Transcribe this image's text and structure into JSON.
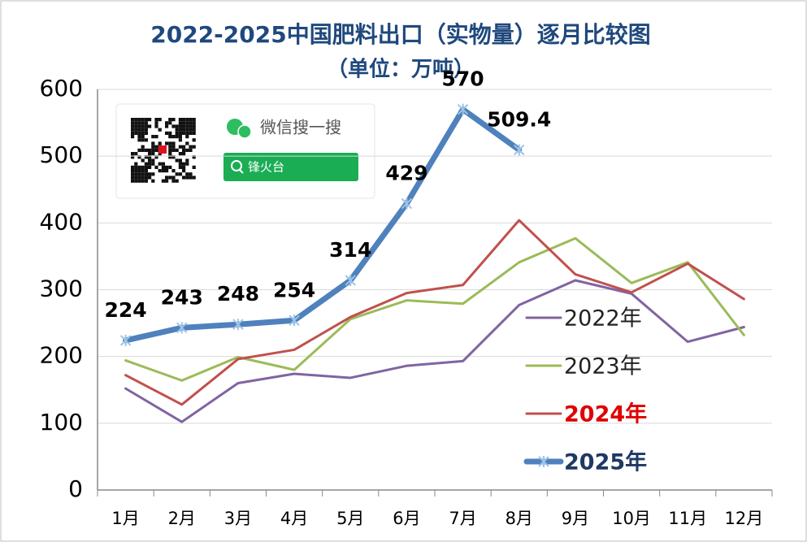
{
  "chart_data": {
    "type": "line",
    "title": "2022-2025中国肥料出口（实物量）逐月比较图",
    "subtitle": "（单位：万吨）",
    "categories": [
      "1月",
      "2月",
      "3月",
      "4月",
      "5月",
      "6月",
      "7月",
      "8月",
      "9月",
      "10月",
      "11月",
      "12月"
    ],
    "series": [
      {
        "name": "2022年",
        "color": "#8064a2",
        "values": [
          152,
          102,
          160,
          174,
          168,
          186,
          193,
          277,
          314,
          294,
          222,
          244
        ]
      },
      {
        "name": "2023年",
        "color": "#9bbb59",
        "values": [
          194,
          164,
          199,
          180,
          256,
          284,
          279,
          341,
          377,
          310,
          341,
          232
        ]
      },
      {
        "name": "2024年",
        "color": "#c0504d",
        "values": [
          172,
          128,
          196,
          210,
          259,
          295,
          307,
          404,
          323,
          296,
          339,
          286
        ]
      },
      {
        "name": "2025年",
        "color": "#4f81bd",
        "values": [
          224,
          243,
          248,
          254,
          314,
          429,
          570,
          509.4,
          null,
          null,
          null,
          null
        ]
      }
    ],
    "ylim": [
      0,
      600
    ],
    "yticks": [
      0,
      100,
      200,
      300,
      400,
      500,
      600
    ],
    "grid": true,
    "legend": "right",
    "watermark": {
      "text": "微信搜一搜",
      "search": "锋火台"
    }
  }
}
